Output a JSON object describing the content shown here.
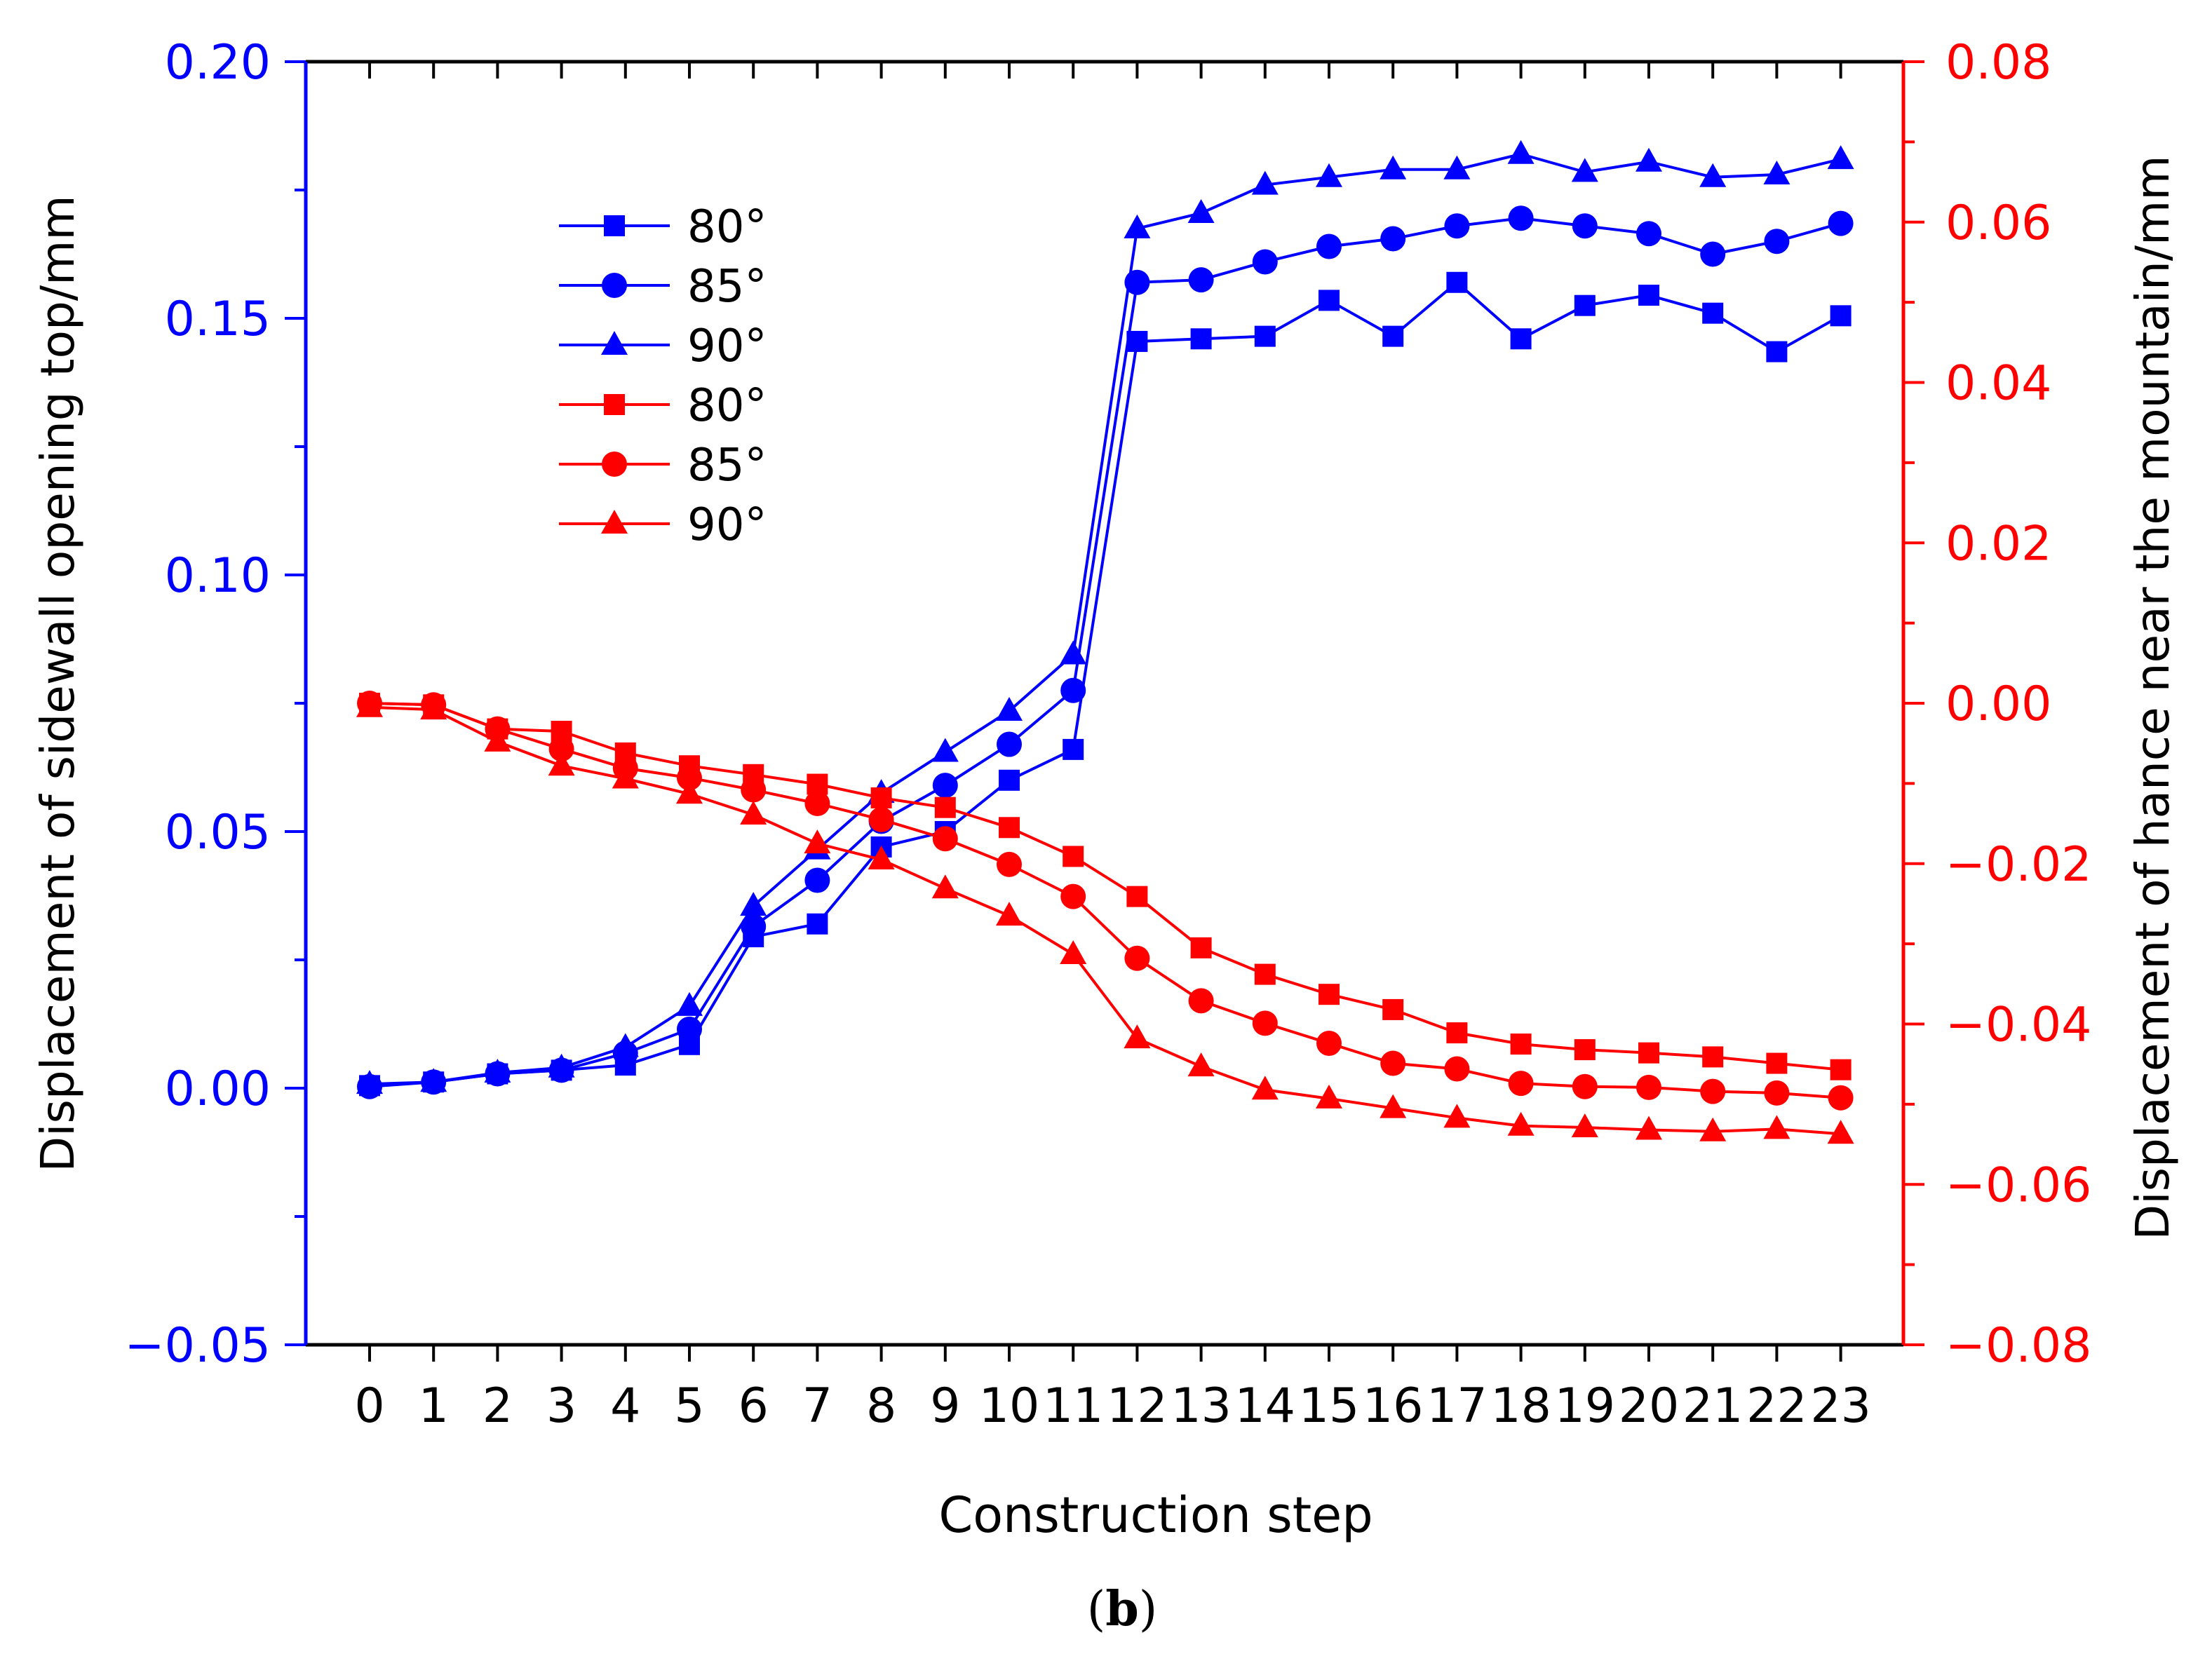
{
  "colors": {
    "left_axis": "#0000ff",
    "right_axis": "#ff0000",
    "frame": "#000000"
  },
  "chart_data": {
    "type": "line",
    "xlabel": "Construction step",
    "ylabel_left": "Displacement of sidewall opening top/mm",
    "ylabel_right": "Displacement of hance near the mountain/mm",
    "caption_letter": "b",
    "caption_open": "(",
    "caption_close": ")",
    "x": [
      0,
      1,
      2,
      3,
      4,
      5,
      6,
      7,
      8,
      9,
      10,
      11,
      12,
      13,
      14,
      15,
      16,
      17,
      18,
      19,
      20,
      21,
      22,
      23
    ],
    "x_tick_labels": [
      "0",
      "1",
      "2",
      "3",
      "4",
      "5",
      "6",
      "7",
      "8",
      "9",
      "10",
      "11",
      "12",
      "13",
      "14",
      "15",
      "16",
      "17",
      "18",
      "19",
      "20",
      "21",
      "22",
      "23"
    ],
    "ylim_left": [
      -0.05,
      0.2
    ],
    "ylim_right": [
      -0.08,
      0.08
    ],
    "y_ticks_left": [
      "−0.05",
      "0.00",
      "0.05",
      "0.10",
      "0.15",
      "0.20"
    ],
    "y_tick_values_left": [
      -0.05,
      0.0,
      0.05,
      0.1,
      0.15,
      0.2
    ],
    "y_ticks_right": [
      "−0.08",
      "−0.06",
      "−0.04",
      "−0.02",
      "0.00",
      "0.02",
      "0.04",
      "0.06",
      "0.08"
    ],
    "y_tick_values_right": [
      -0.08,
      -0.06,
      -0.04,
      -0.02,
      0.0,
      0.02,
      0.04,
      0.06,
      0.08
    ],
    "legend_position": "upper-left",
    "series": [
      {
        "name": "80°",
        "axis": "left",
        "marker": "square",
        "color": "#0000ff",
        "values": [
          0.0005,
          0.0012,
          0.0028,
          0.0035,
          0.0045,
          0.0085,
          0.0295,
          0.032,
          0.047,
          0.05,
          0.06,
          0.066,
          0.1455,
          0.146,
          0.1465,
          0.1535,
          0.1465,
          0.157,
          0.146,
          0.1525,
          0.1545,
          0.151,
          0.1435,
          0.1505
        ]
      },
      {
        "name": "85°",
        "axis": "left",
        "marker": "circle",
        "color": "#0000ff",
        "values": [
          0.0003,
          0.0012,
          0.0028,
          0.0035,
          0.0068,
          0.0115,
          0.0315,
          0.0405,
          0.052,
          0.059,
          0.067,
          0.0775,
          0.157,
          0.1575,
          0.161,
          0.164,
          0.1655,
          0.168,
          0.1695,
          0.168,
          0.1665,
          0.1625,
          0.165,
          0.1685
        ]
      },
      {
        "name": "90°",
        "axis": "left",
        "marker": "triangle",
        "color": "#0000ff",
        "values": [
          0.0008,
          0.0012,
          0.003,
          0.004,
          0.008,
          0.016,
          0.0355,
          0.0465,
          0.0575,
          0.0655,
          0.0735,
          0.0845,
          0.1675,
          0.1705,
          0.176,
          0.1775,
          0.179,
          0.179,
          0.182,
          0.1785,
          0.1805,
          0.1775,
          0.178,
          0.181
        ]
      },
      {
        "name": "80°",
        "axis": "right",
        "marker": "square",
        "color": "#ff0000",
        "values": [
          0.0,
          -0.0002,
          -0.0032,
          -0.0035,
          -0.0062,
          -0.0078,
          -0.0089,
          -0.0101,
          -0.0118,
          -0.013,
          -0.0155,
          -0.0191,
          -0.0241,
          -0.0305,
          -0.0338,
          -0.0363,
          -0.0382,
          -0.0411,
          -0.0425,
          -0.0432,
          -0.0436,
          -0.0441,
          -0.0449,
          -0.0457
        ]
      },
      {
        "name": "85°",
        "axis": "right",
        "marker": "circle",
        "color": "#ff0000",
        "values": [
          0.0,
          -0.0002,
          -0.0032,
          -0.0057,
          -0.0081,
          -0.0093,
          -0.0108,
          -0.0125,
          -0.0145,
          -0.0169,
          -0.0201,
          -0.0241,
          -0.0318,
          -0.0371,
          -0.0399,
          -0.0424,
          -0.0449,
          -0.0456,
          -0.0474,
          -0.0478,
          -0.0479,
          -0.0484,
          -0.0486,
          -0.0492
        ]
      },
      {
        "name": "90°",
        "axis": "right",
        "marker": "triangle",
        "color": "#ff0000",
        "values": [
          -0.0005,
          -0.0008,
          -0.0048,
          -0.0078,
          -0.0094,
          -0.0113,
          -0.0139,
          -0.0175,
          -0.0195,
          -0.0231,
          -0.0265,
          -0.0313,
          -0.0418,
          -0.0453,
          -0.0482,
          -0.0493,
          -0.0505,
          -0.0517,
          -0.0527,
          -0.0529,
          -0.0532,
          -0.0534,
          -0.0531,
          -0.0537
        ]
      }
    ]
  }
}
